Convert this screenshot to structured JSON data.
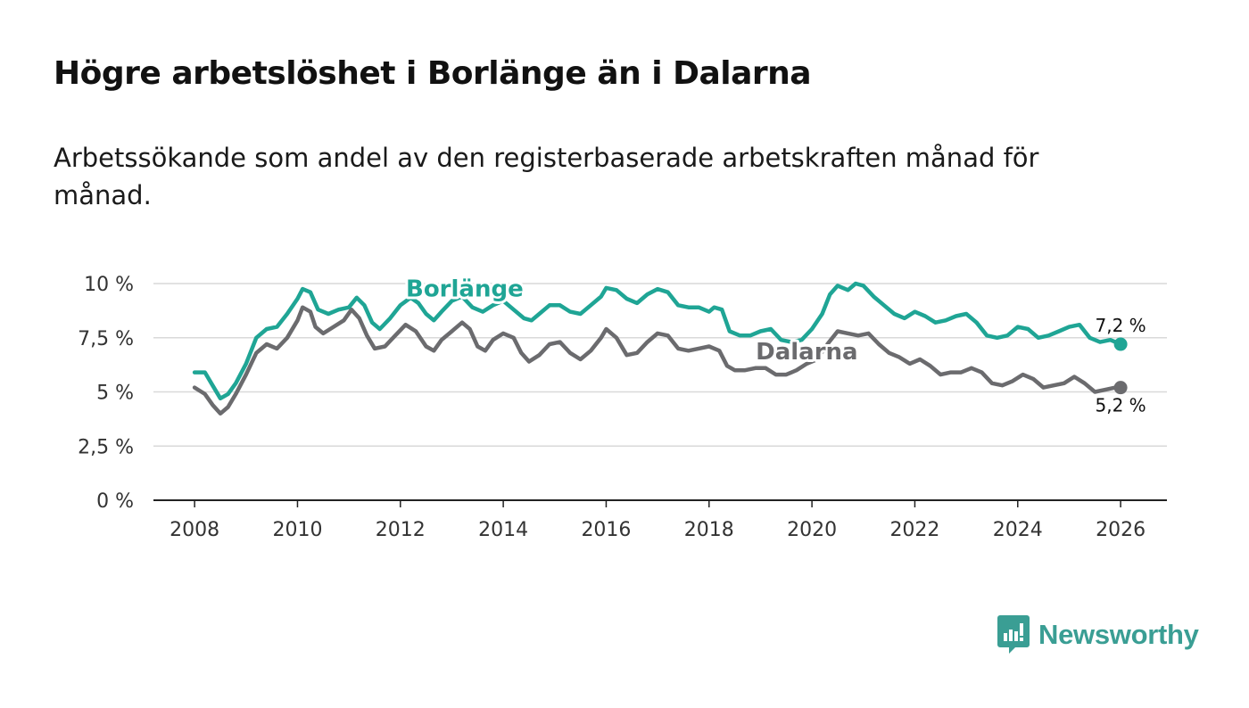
{
  "title": "Högre arbetslöshet i Borlänge än i Dalarna",
  "subtitle": "Arbetssökande som andel av den registerbaserade arbetskraften månad för månad.",
  "brand": {
    "name": "Newsworthy",
    "color": "#3a9e94",
    "icon": "newsworthy-logo-icon"
  },
  "chart_data": {
    "type": "line",
    "title": "Högre arbetslöshet i Borlänge än i Dalarna",
    "subtitle": "Arbetssökande som andel av den registerbaserade arbetskraften månad för månad.",
    "xlabel": "",
    "ylabel": "",
    "xlim": [
      2007.2,
      2026.9
    ],
    "ylim": [
      0,
      10
    ],
    "grid": true,
    "x_ticks": [
      2008,
      2010,
      2012,
      2014,
      2016,
      2018,
      2020,
      2022,
      2024,
      2026
    ],
    "x_tick_labels": [
      "2008",
      "2010",
      "2012",
      "2014",
      "2016",
      "2018",
      "2020",
      "2022",
      "2024",
      "2026"
    ],
    "y_ticks": [
      0,
      2.5,
      5,
      7.5,
      10
    ],
    "y_tick_labels": [
      "0 %",
      "2,5 %",
      "5 %",
      "7,5 %",
      "10 %"
    ],
    "series": [
      {
        "name": "Borlänge",
        "color": "#1fa595",
        "end_label": "7,2 %",
        "label_at": [
          2013.25,
          9.4
        ],
        "points": [
          [
            2008.0,
            5.9
          ],
          [
            2008.2,
            5.9
          ],
          [
            2008.35,
            5.3
          ],
          [
            2008.5,
            4.7
          ],
          [
            2008.65,
            4.9
          ],
          [
            2008.8,
            5.4
          ],
          [
            2009.0,
            6.3
          ],
          [
            2009.2,
            7.5
          ],
          [
            2009.4,
            7.9
          ],
          [
            2009.6,
            8.0
          ],
          [
            2009.8,
            8.6
          ],
          [
            2010.0,
            9.3
          ],
          [
            2010.1,
            9.75
          ],
          [
            2010.25,
            9.6
          ],
          [
            2010.4,
            8.8
          ],
          [
            2010.6,
            8.6
          ],
          [
            2010.8,
            8.8
          ],
          [
            2011.0,
            8.9
          ],
          [
            2011.15,
            9.35
          ],
          [
            2011.3,
            9.0
          ],
          [
            2011.45,
            8.2
          ],
          [
            2011.6,
            7.9
          ],
          [
            2011.8,
            8.4
          ],
          [
            2012.0,
            9.0
          ],
          [
            2012.2,
            9.35
          ],
          [
            2012.35,
            9.1
          ],
          [
            2012.5,
            8.6
          ],
          [
            2012.65,
            8.3
          ],
          [
            2012.8,
            8.7
          ],
          [
            2013.0,
            9.2
          ],
          [
            2013.2,
            9.4
          ],
          [
            2013.4,
            8.9
          ],
          [
            2013.6,
            8.7
          ],
          [
            2013.8,
            9.0
          ],
          [
            2014.0,
            9.2
          ],
          [
            2014.2,
            8.8
          ],
          [
            2014.4,
            8.4
          ],
          [
            2014.55,
            8.3
          ],
          [
            2014.7,
            8.6
          ],
          [
            2014.9,
            9.0
          ],
          [
            2015.1,
            9.0
          ],
          [
            2015.3,
            8.7
          ],
          [
            2015.5,
            8.6
          ],
          [
            2015.7,
            9.0
          ],
          [
            2015.9,
            9.4
          ],
          [
            2016.0,
            9.8
          ],
          [
            2016.2,
            9.7
          ],
          [
            2016.4,
            9.3
          ],
          [
            2016.6,
            9.1
          ],
          [
            2016.8,
            9.5
          ],
          [
            2017.0,
            9.75
          ],
          [
            2017.2,
            9.6
          ],
          [
            2017.4,
            9.0
          ],
          [
            2017.6,
            8.9
          ],
          [
            2017.8,
            8.9
          ],
          [
            2018.0,
            8.7
          ],
          [
            2018.1,
            8.9
          ],
          [
            2018.25,
            8.8
          ],
          [
            2018.4,
            7.8
          ],
          [
            2018.6,
            7.6
          ],
          [
            2018.8,
            7.6
          ],
          [
            2019.0,
            7.8
          ],
          [
            2019.2,
            7.9
          ],
          [
            2019.4,
            7.4
          ],
          [
            2019.6,
            7.3
          ],
          [
            2019.8,
            7.4
          ],
          [
            2020.0,
            7.9
          ],
          [
            2020.2,
            8.6
          ],
          [
            2020.35,
            9.5
          ],
          [
            2020.5,
            9.9
          ],
          [
            2020.7,
            9.7
          ],
          [
            2020.85,
            10.0
          ],
          [
            2021.0,
            9.9
          ],
          [
            2021.2,
            9.4
          ],
          [
            2021.4,
            9.0
          ],
          [
            2021.6,
            8.6
          ],
          [
            2021.8,
            8.4
          ],
          [
            2022.0,
            8.7
          ],
          [
            2022.2,
            8.5
          ],
          [
            2022.4,
            8.2
          ],
          [
            2022.6,
            8.3
          ],
          [
            2022.8,
            8.5
          ],
          [
            2023.0,
            8.6
          ],
          [
            2023.2,
            8.2
          ],
          [
            2023.4,
            7.6
          ],
          [
            2023.6,
            7.5
          ],
          [
            2023.8,
            7.6
          ],
          [
            2024.0,
            8.0
          ],
          [
            2024.2,
            7.9
          ],
          [
            2024.4,
            7.5
          ],
          [
            2024.6,
            7.6
          ],
          [
            2024.8,
            7.8
          ],
          [
            2025.0,
            8.0
          ],
          [
            2025.2,
            8.1
          ],
          [
            2025.4,
            7.5
          ],
          [
            2025.6,
            7.3
          ],
          [
            2025.8,
            7.4
          ],
          [
            2026.0,
            7.2
          ]
        ]
      },
      {
        "name": "Dalarna",
        "color": "#6b6b6e",
        "end_label": "5,2 %",
        "label_at": [
          2019.9,
          6.5
        ],
        "points": [
          [
            2008.0,
            5.2
          ],
          [
            2008.2,
            4.9
          ],
          [
            2008.35,
            4.4
          ],
          [
            2008.5,
            4.0
          ],
          [
            2008.65,
            4.3
          ],
          [
            2008.8,
            4.9
          ],
          [
            2009.0,
            5.8
          ],
          [
            2009.2,
            6.8
          ],
          [
            2009.4,
            7.2
          ],
          [
            2009.6,
            7.0
          ],
          [
            2009.8,
            7.5
          ],
          [
            2010.0,
            8.3
          ],
          [
            2010.1,
            8.9
          ],
          [
            2010.25,
            8.7
          ],
          [
            2010.35,
            8.0
          ],
          [
            2010.5,
            7.7
          ],
          [
            2010.7,
            8.0
          ],
          [
            2010.9,
            8.3
          ],
          [
            2011.05,
            8.8
          ],
          [
            2011.2,
            8.4
          ],
          [
            2011.35,
            7.6
          ],
          [
            2011.5,
            7.0
          ],
          [
            2011.7,
            7.1
          ],
          [
            2011.9,
            7.6
          ],
          [
            2012.1,
            8.1
          ],
          [
            2012.3,
            7.8
          ],
          [
            2012.5,
            7.1
          ],
          [
            2012.65,
            6.9
          ],
          [
            2012.8,
            7.4
          ],
          [
            2013.0,
            7.8
          ],
          [
            2013.2,
            8.2
          ],
          [
            2013.35,
            7.9
          ],
          [
            2013.5,
            7.1
          ],
          [
            2013.65,
            6.9
          ],
          [
            2013.8,
            7.4
          ],
          [
            2014.0,
            7.7
          ],
          [
            2014.2,
            7.5
          ],
          [
            2014.35,
            6.8
          ],
          [
            2014.5,
            6.4
          ],
          [
            2014.7,
            6.7
          ],
          [
            2014.9,
            7.2
          ],
          [
            2015.1,
            7.3
          ],
          [
            2015.3,
            6.8
          ],
          [
            2015.5,
            6.5
          ],
          [
            2015.7,
            6.9
          ],
          [
            2015.9,
            7.5
          ],
          [
            2016.0,
            7.9
          ],
          [
            2016.2,
            7.5
          ],
          [
            2016.4,
            6.7
          ],
          [
            2016.6,
            6.8
          ],
          [
            2016.8,
            7.3
          ],
          [
            2017.0,
            7.7
          ],
          [
            2017.2,
            7.6
          ],
          [
            2017.4,
            7.0
          ],
          [
            2017.6,
            6.9
          ],
          [
            2017.8,
            7.0
          ],
          [
            2018.0,
            7.1
          ],
          [
            2018.2,
            6.9
          ],
          [
            2018.35,
            6.2
          ],
          [
            2018.5,
            6.0
          ],
          [
            2018.7,
            6.0
          ],
          [
            2018.9,
            6.1
          ],
          [
            2019.1,
            6.1
          ],
          [
            2019.3,
            5.8
          ],
          [
            2019.5,
            5.8
          ],
          [
            2019.7,
            6.0
          ],
          [
            2019.9,
            6.3
          ],
          [
            2020.1,
            6.5
          ],
          [
            2020.3,
            7.2
          ],
          [
            2020.5,
            7.8
          ],
          [
            2020.7,
            7.7
          ],
          [
            2020.9,
            7.6
          ],
          [
            2021.1,
            7.7
          ],
          [
            2021.3,
            7.2
          ],
          [
            2021.5,
            6.8
          ],
          [
            2021.7,
            6.6
          ],
          [
            2021.9,
            6.3
          ],
          [
            2022.1,
            6.5
          ],
          [
            2022.3,
            6.2
          ],
          [
            2022.5,
            5.8
          ],
          [
            2022.7,
            5.9
          ],
          [
            2022.9,
            5.9
          ],
          [
            2023.1,
            6.1
          ],
          [
            2023.3,
            5.9
          ],
          [
            2023.5,
            5.4
          ],
          [
            2023.7,
            5.3
          ],
          [
            2023.9,
            5.5
          ],
          [
            2024.1,
            5.8
          ],
          [
            2024.3,
            5.6
          ],
          [
            2024.5,
            5.2
          ],
          [
            2024.7,
            5.3
          ],
          [
            2024.9,
            5.4
          ],
          [
            2025.1,
            5.7
          ],
          [
            2025.3,
            5.4
          ],
          [
            2025.5,
            5.0
          ],
          [
            2025.7,
            5.1
          ],
          [
            2025.9,
            5.2
          ],
          [
            2026.0,
            5.2
          ]
        ]
      }
    ]
  }
}
